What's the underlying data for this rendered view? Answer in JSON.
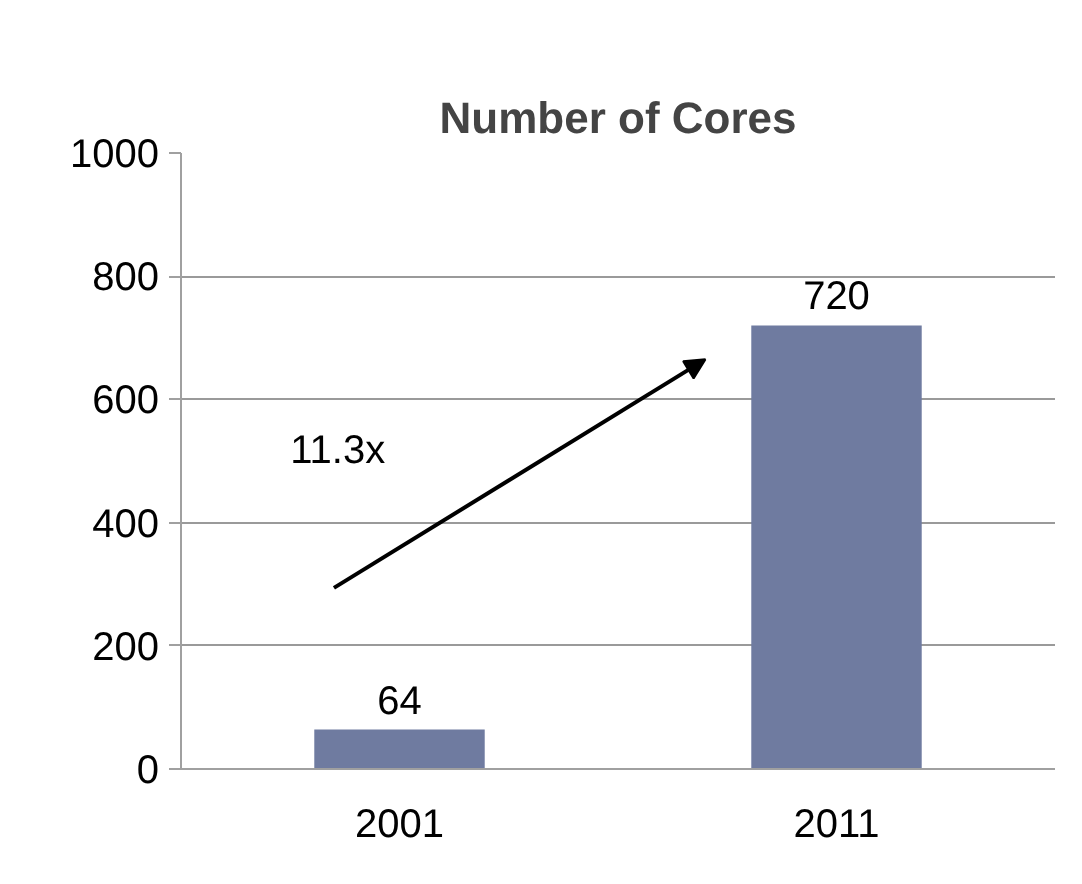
{
  "chart_data": {
    "type": "bar",
    "title": "Number of Cores",
    "categories": [
      "2001",
      "2011"
    ],
    "values": [
      64,
      720
    ],
    "color": "#6f7ba0",
    "ylim": [
      0,
      1000
    ],
    "yticks": [
      0,
      200,
      400,
      600,
      800,
      1000
    ],
    "grid": "y",
    "data_labels": true,
    "annotations": [
      "11.3x"
    ]
  }
}
